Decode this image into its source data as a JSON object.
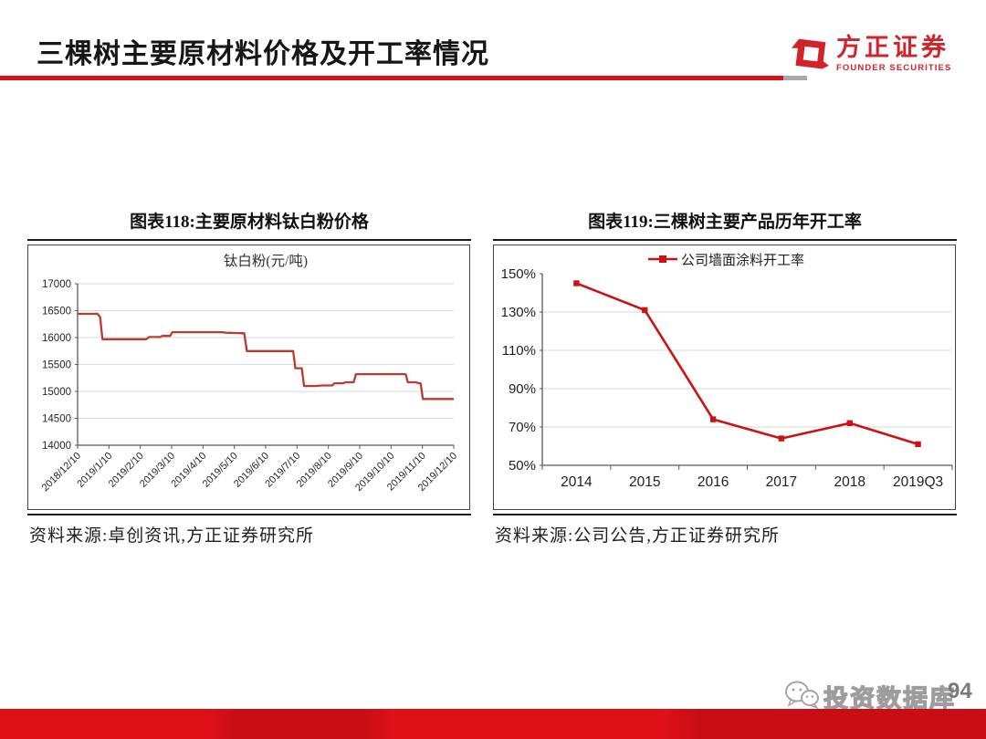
{
  "header": {
    "title": "三棵树主要原材料价格及开工率情况",
    "logo_cn": "方正证券",
    "logo_en": "FOUNDER SECURITIES",
    "accent_red": "#d8111b"
  },
  "figures": {
    "left": {
      "caption": "图表118:主要原材料钛白粉价格",
      "source": "资料来源:卓创资讯,方正证券研究所"
    },
    "right": {
      "caption": "图表119:三棵树主要产品历年开工率",
      "source": "资料来源:公司公告,方正证券研究所"
    }
  },
  "footer": {
    "watermark": "投资数据库",
    "page": "94"
  },
  "chart_data": [
    {
      "type": "line",
      "title": "钛白粉(元/吨)",
      "xlabel": "",
      "ylabel": "",
      "ylim": [
        14000,
        17000
      ],
      "yticks": [
        14000,
        14500,
        15000,
        15500,
        16000,
        16500,
        17000
      ],
      "xticklabels": [
        "2018/12/10",
        "2019/1/10",
        "2019/2/10",
        "2019/3/10",
        "2019/4/10",
        "2019/5/10",
        "2019/6/10",
        "2019/7/10",
        "2019/8/10",
        "2019/9/10",
        "2019/10/10",
        "2019/11/10",
        "2019/12/10"
      ],
      "grid": true,
      "legend_position": "none",
      "line_color": "#be3a2e",
      "step_points": [
        [
          0,
          16440
        ],
        [
          5.3,
          16440
        ],
        [
          6.0,
          16380
        ],
        [
          6.6,
          15970
        ],
        [
          18.3,
          15970
        ],
        [
          19.0,
          16010
        ],
        [
          22.0,
          16010
        ],
        [
          22.5,
          16030
        ],
        [
          24.6,
          16030
        ],
        [
          25.2,
          16100
        ],
        [
          38.3,
          16100
        ],
        [
          39.5,
          16090
        ],
        [
          44.3,
          16080
        ],
        [
          45.0,
          15750
        ],
        [
          57.3,
          15750
        ],
        [
          57.9,
          15430
        ],
        [
          59.6,
          15430
        ],
        [
          60.2,
          15100
        ],
        [
          63.0,
          15100
        ],
        [
          65.0,
          15110
        ],
        [
          67.7,
          15110
        ],
        [
          68.3,
          15150
        ],
        [
          70.6,
          15150
        ],
        [
          71.2,
          15170
        ],
        [
          73.4,
          15170
        ],
        [
          74.0,
          15320
        ],
        [
          87.2,
          15320
        ],
        [
          87.8,
          15170
        ],
        [
          90.0,
          15170
        ],
        [
          90.6,
          15150
        ],
        [
          91.2,
          15150
        ],
        [
          91.8,
          14860
        ],
        [
          100,
          14860
        ]
      ]
    },
    {
      "type": "line",
      "title": "",
      "legend": "公司墙面涂料开工率",
      "legend_position": "top",
      "categories": [
        "2014",
        "2015",
        "2016",
        "2017",
        "2018",
        "2019Q3"
      ],
      "values": [
        145,
        131,
        74,
        64,
        72,
        61
      ],
      "ylim": [
        50,
        150
      ],
      "yticks": [
        150,
        130,
        110,
        90,
        70,
        50
      ],
      "ytick_suffix": "%",
      "grid": true,
      "line_color": "#cd1216",
      "marker": "square"
    }
  ]
}
